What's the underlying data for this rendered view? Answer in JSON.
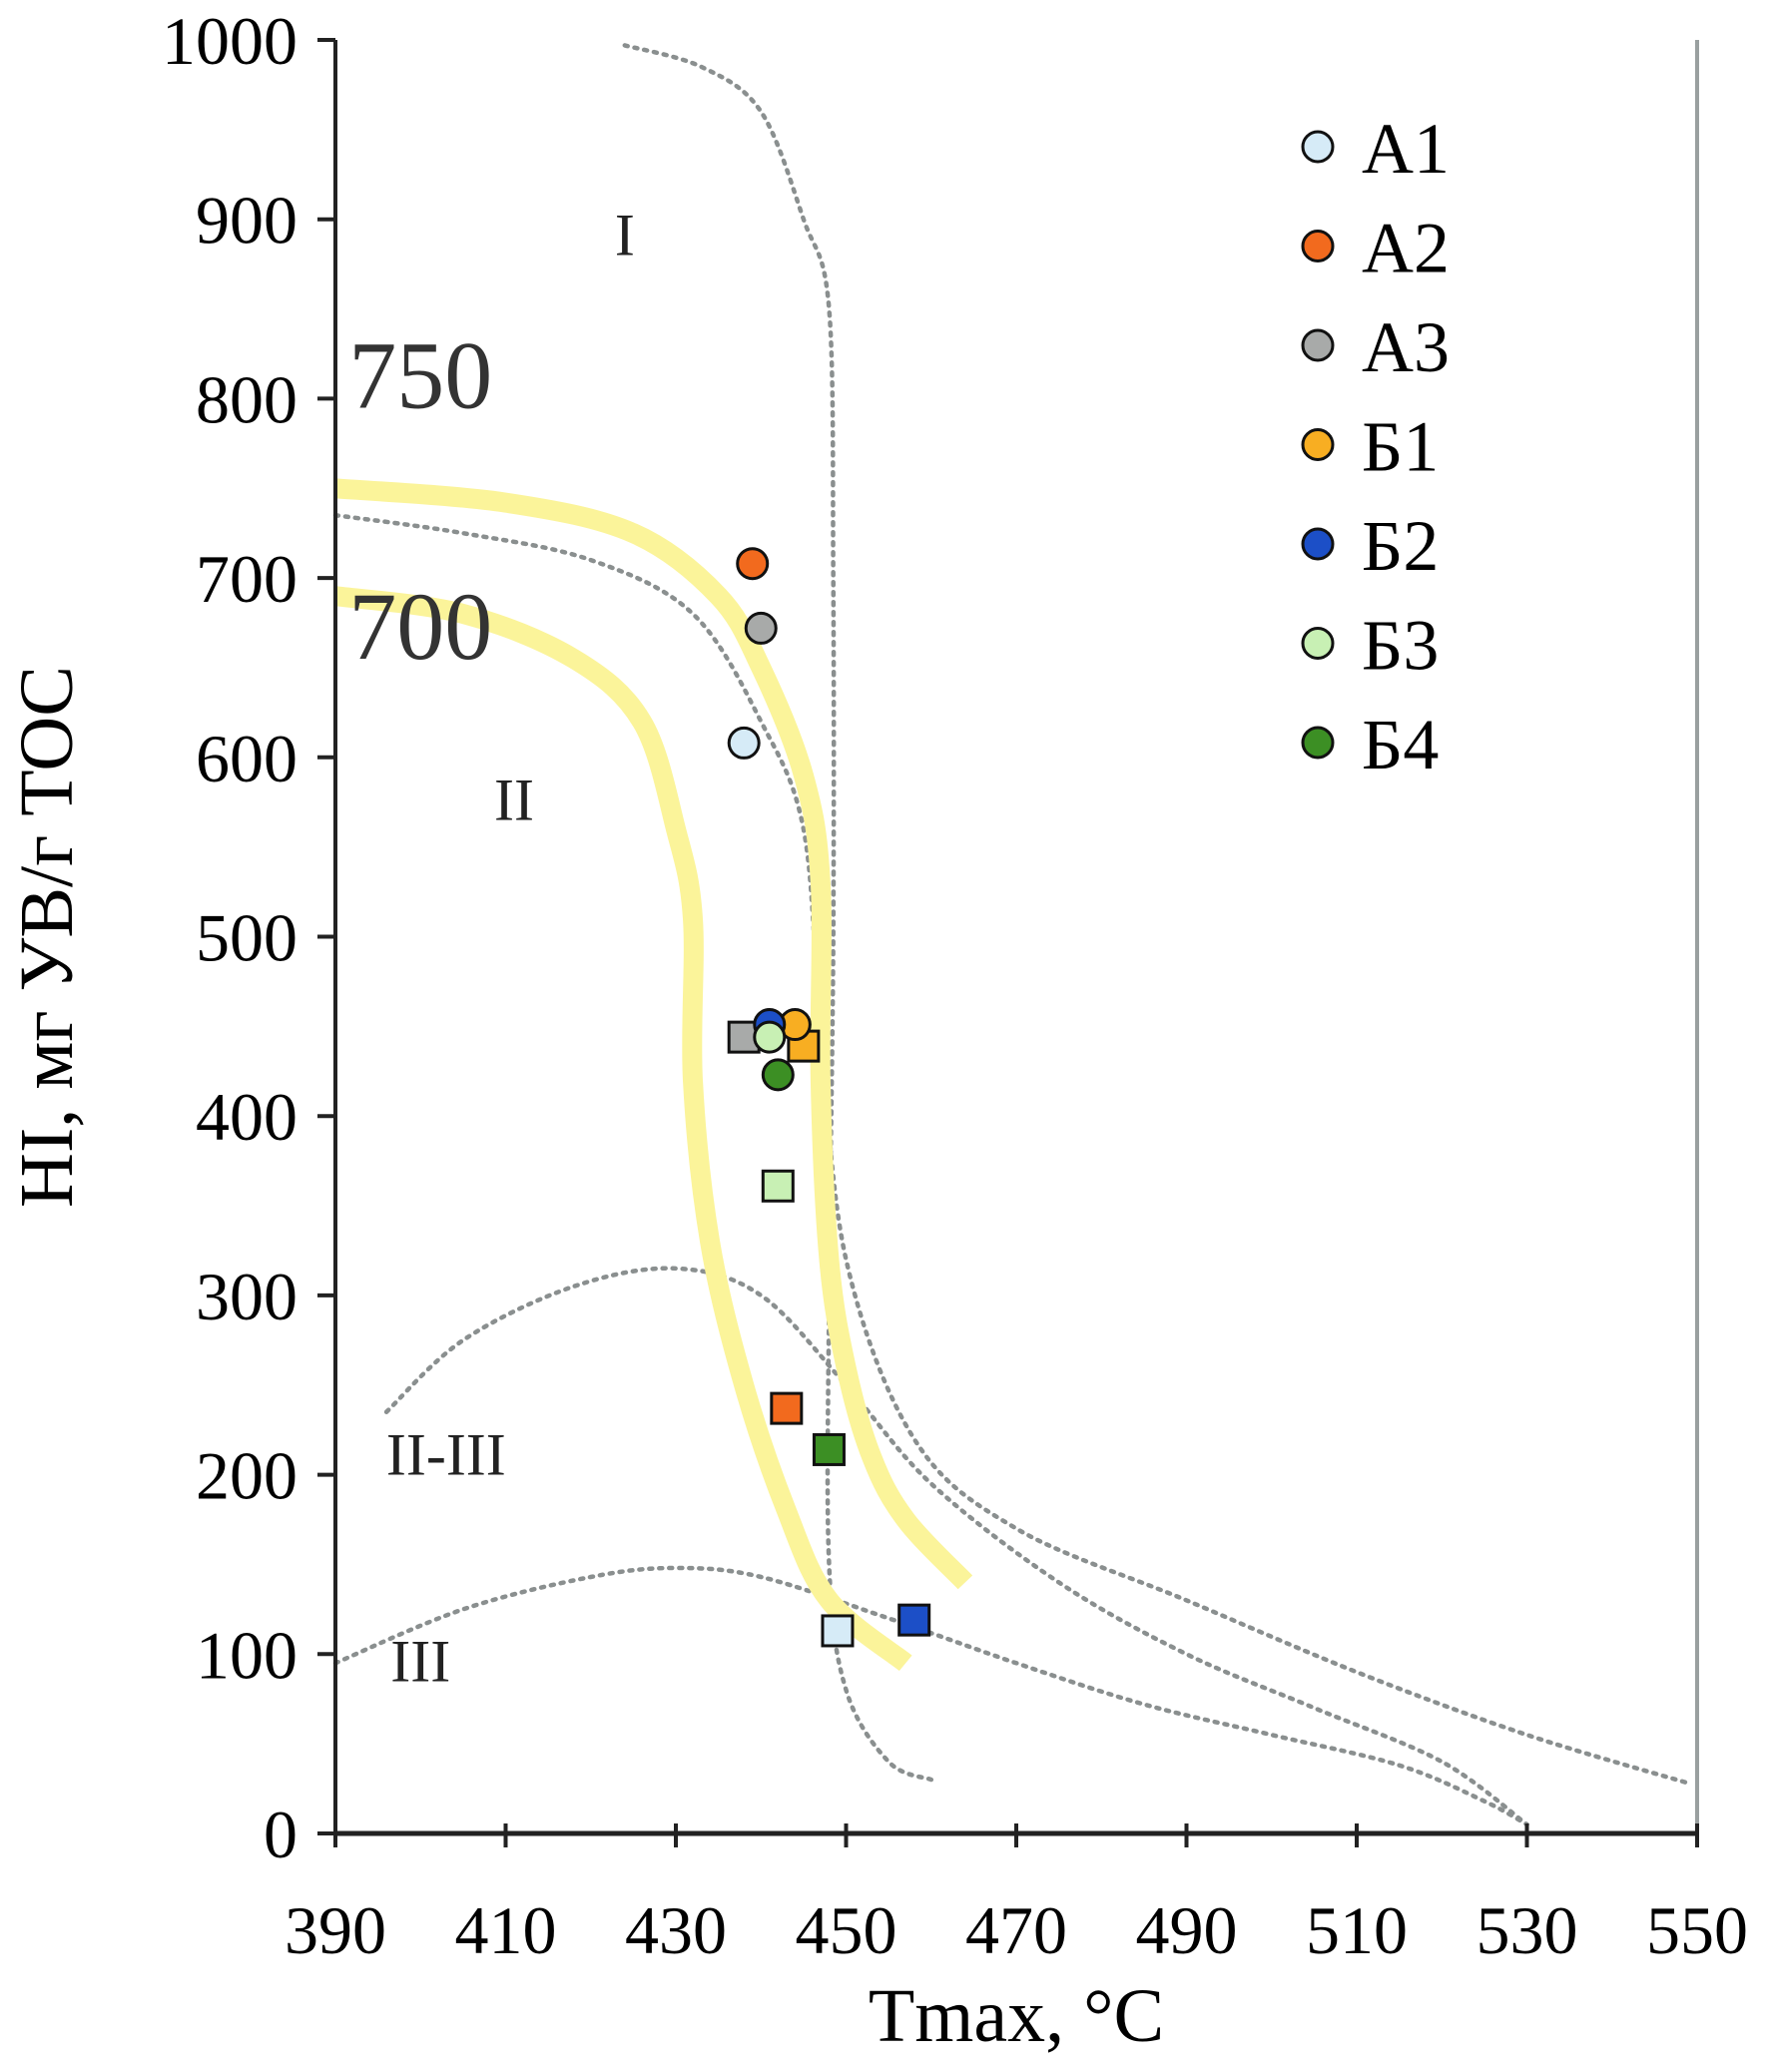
{
  "chart_data": {
    "type": "scatter",
    "title": "",
    "xlabel": "Tmax, °C",
    "ylabel": "HI, мг УВ/г TOC",
    "xlim": [
      390,
      550
    ],
    "ylim": [
      0,
      1000
    ],
    "xticks": [
      390,
      410,
      430,
      450,
      470,
      490,
      510,
      530,
      550
    ],
    "yticks": [
      0,
      100,
      200,
      300,
      400,
      500,
      600,
      700,
      800,
      900,
      1000
    ],
    "grid": false,
    "legend_position": "top-right",
    "zone_labels": [
      {
        "text": "I",
        "x": 424,
        "y": 880
      },
      {
        "text": "II",
        "x": 411,
        "y": 565
      },
      {
        "text": "II-III",
        "x": 403,
        "y": 200
      },
      {
        "text": "III",
        "x": 400,
        "y": 85
      }
    ],
    "isoline_labels": [
      {
        "text": "750",
        "x": 400,
        "y": 795
      },
      {
        "text": "700",
        "x": 400,
        "y": 655
      }
    ],
    "boundary_curves": [
      {
        "name": "",
        "points": [
          [
            424,
            997
          ],
          [
            433,
            985
          ],
          [
            440,
            960
          ],
          [
            445,
            900
          ],
          [
            448,
            850
          ],
          [
            448.5,
            700
          ],
          [
            448.5,
            500
          ],
          [
            448,
            300
          ],
          [
            448,
            150
          ],
          [
            450,
            80
          ],
          [
            455,
            40
          ],
          [
            460,
            30
          ]
        ]
      },
      {
        "name": "",
        "points": [
          [
            390,
            735
          ],
          [
            405,
            725
          ],
          [
            420,
            710
          ],
          [
            432,
            680
          ],
          [
            440,
            620
          ],
          [
            445,
            560
          ],
          [
            447,
            450
          ],
          [
            450,
            320
          ],
          [
            458,
            220
          ],
          [
            470,
            170
          ],
          [
            490,
            130
          ],
          [
            510,
            90
          ],
          [
            530,
            55
          ],
          [
            549,
            28
          ]
        ]
      },
      {
        "name": "",
        "points": [
          [
            396,
            235
          ],
          [
            405,
            275
          ],
          [
            418,
            305
          ],
          [
            430,
            315
          ],
          [
            440,
            300
          ],
          [
            450,
            250
          ],
          [
            460,
            195
          ],
          [
            475,
            140
          ],
          [
            490,
            100
          ],
          [
            505,
            70
          ],
          [
            520,
            40
          ],
          [
            530,
            5
          ]
        ]
      },
      {
        "name": "",
        "points": [
          [
            390,
            95
          ],
          [
            405,
            125
          ],
          [
            420,
            143
          ],
          [
            430,
            148
          ],
          [
            440,
            143
          ],
          [
            455,
            120
          ],
          [
            470,
            95
          ],
          [
            485,
            72
          ],
          [
            500,
            55
          ],
          [
            515,
            38
          ],
          [
            525,
            18
          ],
          [
            530,
            5
          ]
        ]
      }
    ],
    "iso_bands": [
      {
        "name": "750",
        "points": [
          [
            390,
            750
          ],
          [
            410,
            742
          ],
          [
            425,
            725
          ],
          [
            435,
            690
          ],
          [
            440,
            650
          ],
          [
            445,
            590
          ],
          [
            447,
            530
          ],
          [
            447,
            420
          ],
          [
            448,
            320
          ],
          [
            450,
            260
          ],
          [
            453,
            210
          ],
          [
            457,
            175
          ],
          [
            464,
            140
          ]
        ]
      },
      {
        "name": "700",
        "points": [
          [
            390,
            690
          ],
          [
            405,
            680
          ],
          [
            418,
            655
          ],
          [
            426,
            620
          ],
          [
            430,
            560
          ],
          [
            432,
            510
          ],
          [
            432,
            420
          ],
          [
            434,
            330
          ],
          [
            438,
            250
          ],
          [
            443,
            180
          ],
          [
            448,
            130
          ],
          [
            457,
            95
          ]
        ]
      }
    ],
    "series": [
      {
        "name": "A1",
        "color": "#d6ebf7",
        "points": [
          {
            "x": 438,
            "y": 608,
            "marker": "circle"
          },
          {
            "x": 449,
            "y": 113,
            "marker": "square"
          }
        ]
      },
      {
        "name": "A2",
        "color": "#f26a1e",
        "points": [
          {
            "x": 439,
            "y": 708,
            "marker": "circle"
          },
          {
            "x": 443,
            "y": 237,
            "marker": "square"
          }
        ]
      },
      {
        "name": "A3",
        "color": "#a8aaa9",
        "points": [
          {
            "x": 440,
            "y": 672,
            "marker": "circle"
          },
          {
            "x": 438,
            "y": 444,
            "marker": "square"
          }
        ]
      },
      {
        "name": "Б1",
        "color": "#f8ae22",
        "points": [
          {
            "x": 444,
            "y": 451,
            "marker": "circle"
          },
          {
            "x": 445,
            "y": 439,
            "marker": "square"
          }
        ]
      },
      {
        "name": "Б2",
        "color": "#1c4fc7",
        "points": [
          {
            "x": 441,
            "y": 451,
            "marker": "circle"
          },
          {
            "x": 458,
            "y": 119,
            "marker": "square"
          }
        ]
      },
      {
        "name": "Б3",
        "color": "#c8f0b4",
        "points": [
          {
            "x": 441,
            "y": 444,
            "marker": "circle"
          },
          {
            "x": 442,
            "y": 361,
            "marker": "square"
          }
        ]
      },
      {
        "name": "Б4",
        "color": "#3c8f24",
        "points": [
          {
            "x": 442,
            "y": 423,
            "marker": "circle"
          },
          {
            "x": 448,
            "y": 214,
            "marker": "square"
          }
        ]
      }
    ]
  }
}
